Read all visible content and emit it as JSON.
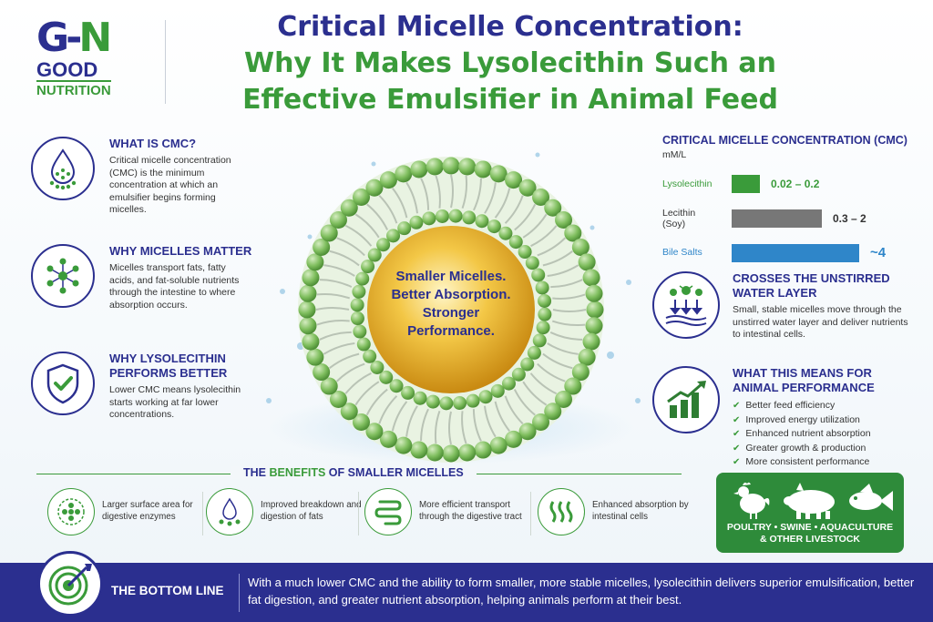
{
  "logo": {
    "mark_left": "G",
    "mark_dash": "-",
    "mark_right": "N",
    "good": "GOOD",
    "nutrition": "NUTRITION"
  },
  "title": {
    "line1": "Critical Micelle Concentration:",
    "line2": "Why It Makes Lysolecithin Such an",
    "line3": "Effective Emulsifier in Animal Feed"
  },
  "left_sections": [
    {
      "heading": "WHAT IS CMC?",
      "body": "Critical micelle concentration (CMC) is the minimum concentration at which an emulsifier begins forming micelles.",
      "icon": "droplet-molecule-icon"
    },
    {
      "heading": "WHY MICELLES MATTER",
      "body": "Micelles transport fats, fatty acids, and fat-soluble nutrients through the intestine to where absorption occurs.",
      "icon": "molecule-network-icon"
    },
    {
      "heading": "WHY LYSOLECITHIN PERFORMS BETTER",
      "body": "Lower CMC means lysolecithin starts working at far lower concentrations.",
      "icon": "shield-check-icon"
    }
  ],
  "micelle": {
    "line1": "Smaller Micelles.",
    "line2": "Better Absorption.",
    "line3": "Stronger",
    "line4": "Performance."
  },
  "cmc_chart": {
    "heading": "CRITICAL MICELLE CONCENTRATION (CMC)",
    "unit": "mM/L",
    "rows": [
      {
        "label": "Lysolecithin",
        "value_text": "0.02 – 0.2",
        "color": "#3a9b3a"
      },
      {
        "label": "Lecithin (Soy)",
        "value_text": "0.3 – 2",
        "color": "#777777"
      },
      {
        "label": "Bile Salts",
        "value_text": "~4",
        "color": "#2f86c9"
      }
    ]
  },
  "chart_data": {
    "type": "bar",
    "title": "CRITICAL MICELLE CONCENTRATION (CMC)",
    "ylabel": "mM/L",
    "categories": [
      "Lysolecithin",
      "Lecithin (Soy)",
      "Bile Salts"
    ],
    "values": [
      0.2,
      2,
      4
    ],
    "value_labels": [
      "0.02 – 0.2",
      "0.3 – 2",
      "~4"
    ],
    "orientation": "horizontal"
  },
  "right_sections": [
    {
      "heading": "CROSSES THE UNSTIRRED WATER LAYER",
      "body": "Small, stable micelles move through the unstirred water layer and deliver nutrients to intestinal cells.",
      "icon": "water-layer-icon"
    },
    {
      "heading": "WHAT THIS MEANS FOR ANIMAL PERFORMANCE",
      "icon": "growth-chart-icon",
      "bullets": [
        "Better feed efficiency",
        "Improved energy utilization",
        "Enhanced nutrient absorption",
        "Greater growth & production",
        "More consistent performance"
      ]
    }
  ],
  "benefits": {
    "title_pre": "THE",
    "title_green": "BENEFITS",
    "title_post": "OF SMALLER MICELLES",
    "items": [
      {
        "text": "Larger surface area for digestive enzymes",
        "icon": "surface-area-icon"
      },
      {
        "text": "Improved breakdown and digestion of fats",
        "icon": "fat-droplets-icon"
      },
      {
        "text": "More efficient transport through the digestive tract",
        "icon": "intestine-icon"
      },
      {
        "text": "Enhanced absorption by intestinal cells",
        "icon": "intestinal-cells-icon"
      }
    ]
  },
  "animals": {
    "caption_line1": "POULTRY • SWINE • AQUACULTURE",
    "caption_line2": "& OTHER LIVESTOCK"
  },
  "bottom_line": {
    "label": "THE BOTTOM LINE",
    "text": "With a much lower CMC and the ability to form smaller, more stable micelles, lysolecithin delivers superior emulsification, better fat digestion, and greater nutrient absorption, helping animals perform at their best."
  },
  "colors": {
    "navy": "#2b2f8f",
    "green": "#3a9b3a",
    "gray": "#777777",
    "blue": "#2f86c9"
  }
}
